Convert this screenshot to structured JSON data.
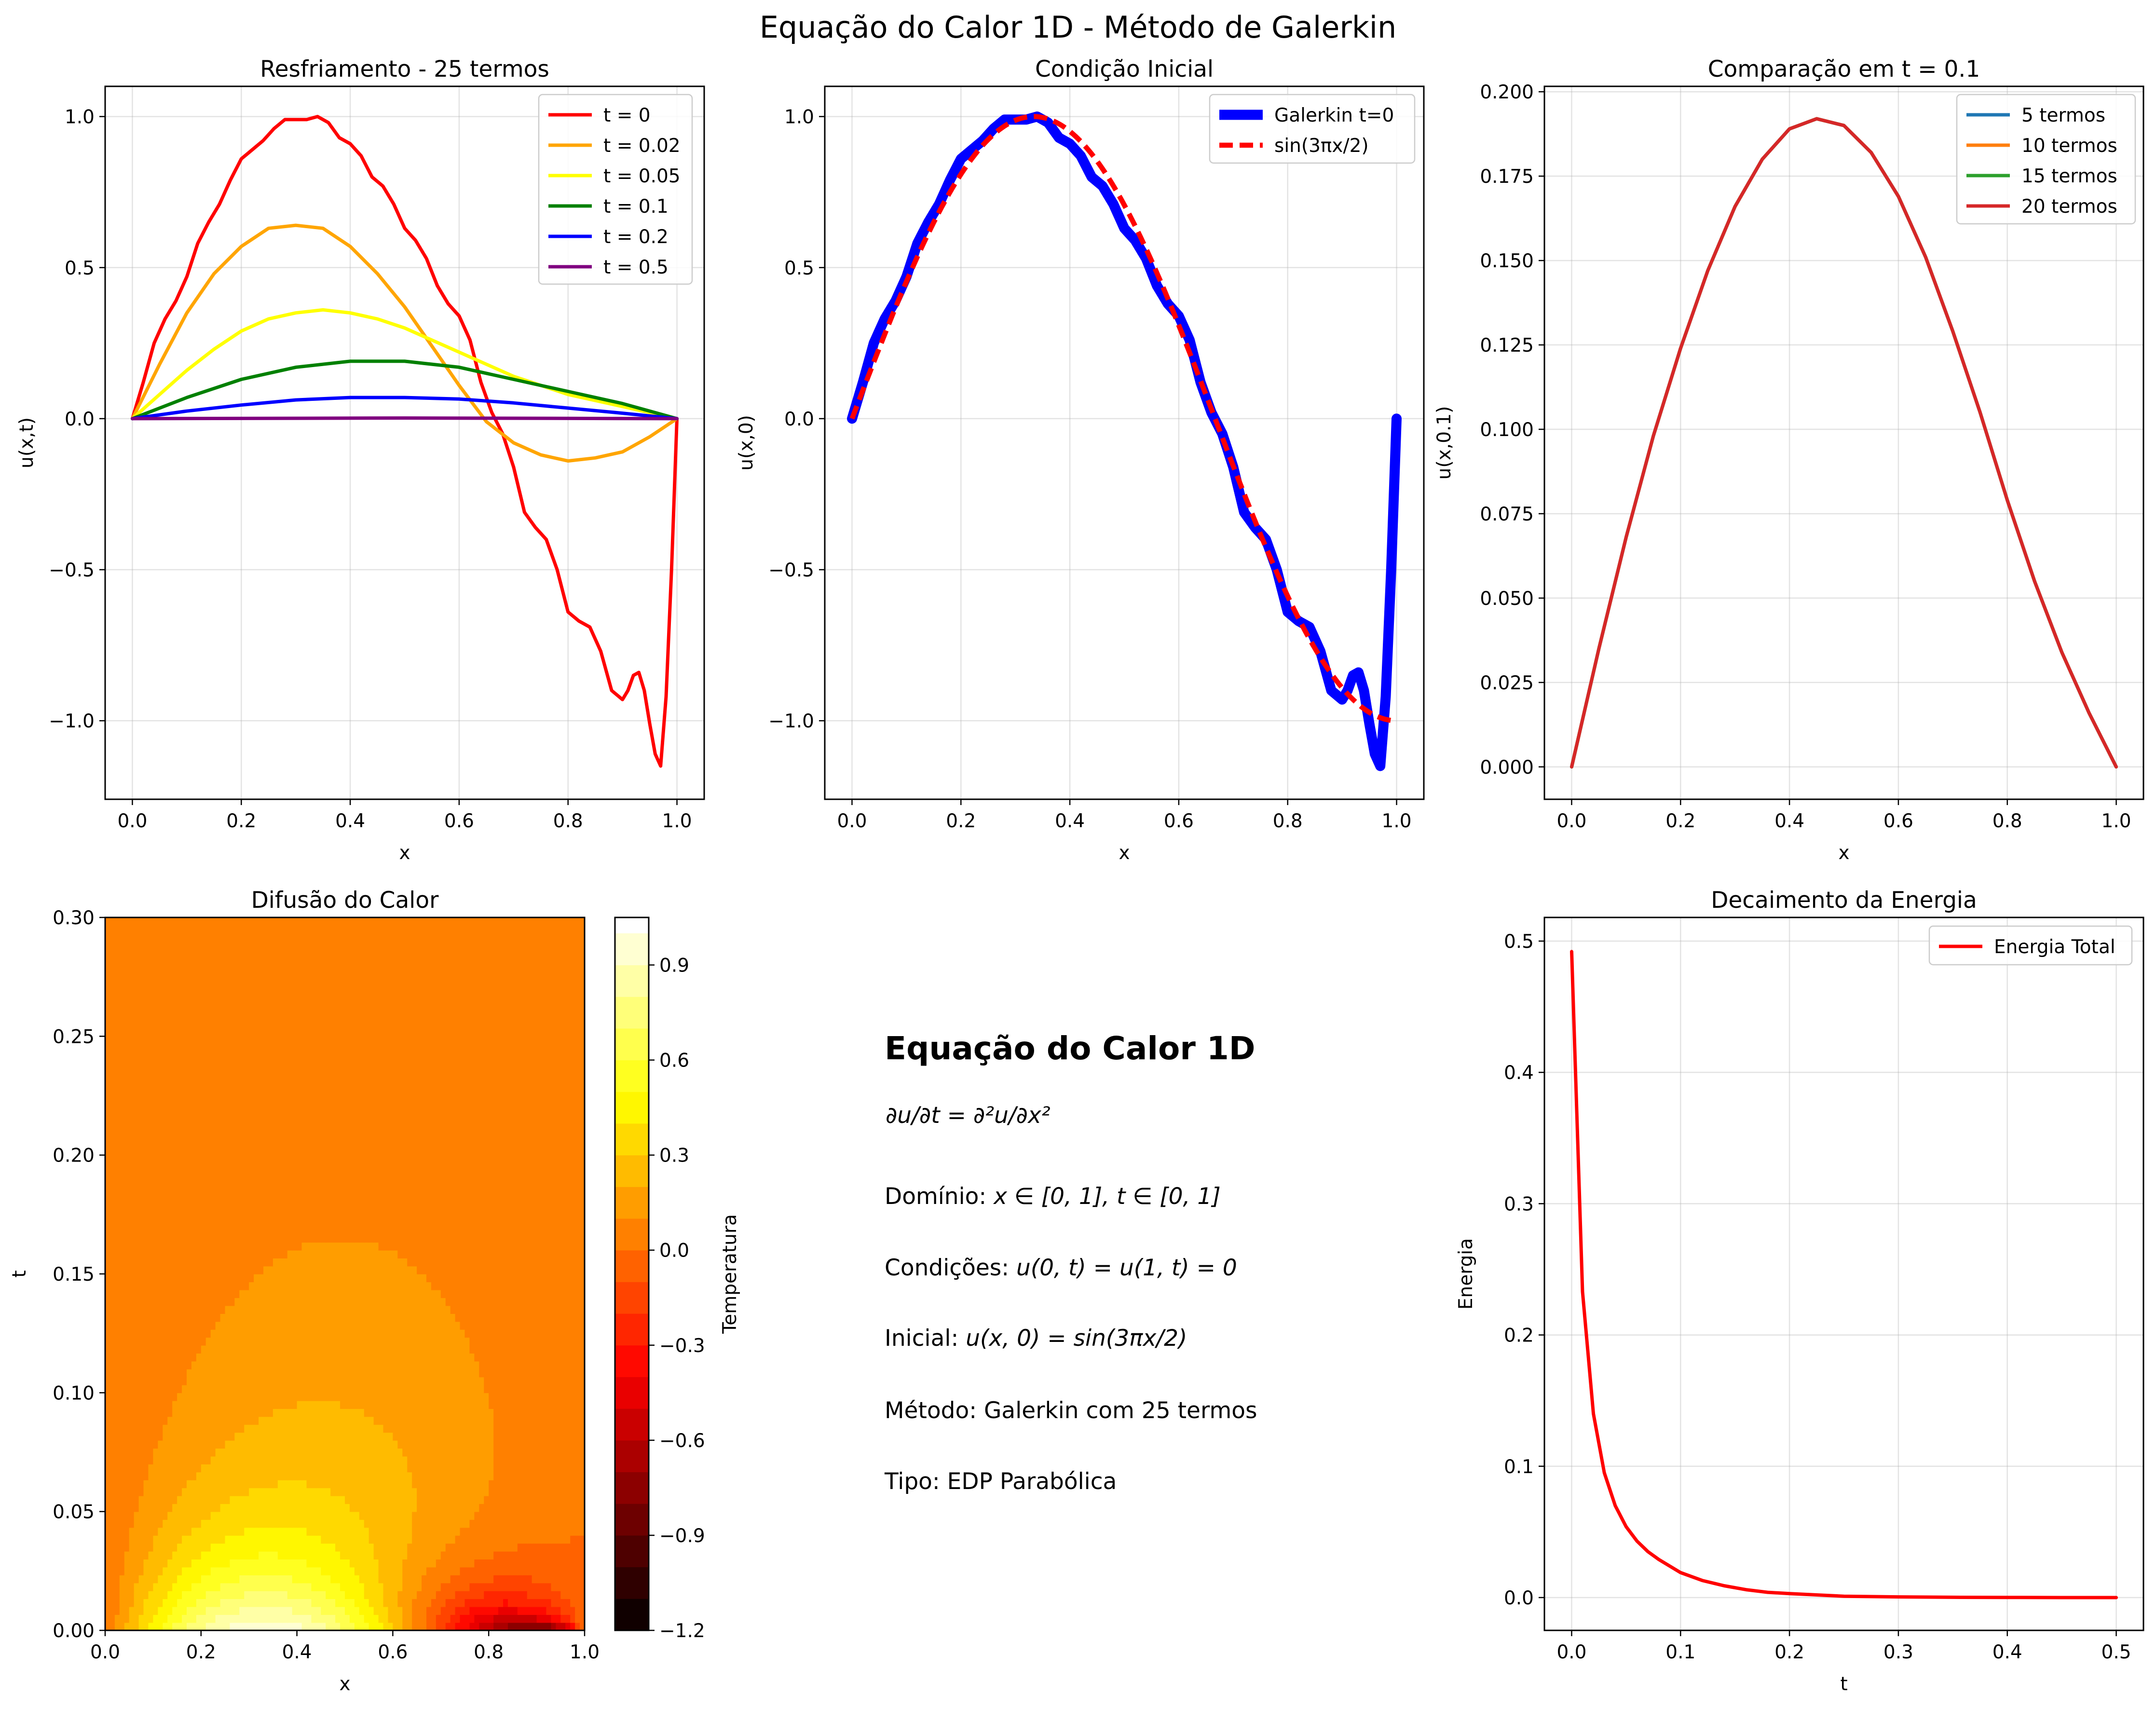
{
  "figure": {
    "suptitle": "Equação do Calor 1D - Método de Galerkin"
  },
  "chart_data": [
    {
      "id": "cooling",
      "type": "line",
      "title": "Resfriamento - 25 termos",
      "xlabel": "x",
      "ylabel": "u(x,t)",
      "xlim": [
        -0.05,
        1.05
      ],
      "ylim": [
        -1.26,
        1.1
      ],
      "xticks": [
        0.0,
        0.2,
        0.4,
        0.6,
        0.8,
        1.0
      ],
      "xtick_labels": [
        "0.0",
        "0.2",
        "0.4",
        "0.6",
        "0.8",
        "1.0"
      ],
      "yticks": [
        -1.0,
        -0.5,
        0.0,
        0.5,
        1.0
      ],
      "ytick_labels": [
        "−1.0",
        "−0.5",
        "0.0",
        "0.5",
        "1.0"
      ],
      "grid": true,
      "legend_position": "upper right",
      "series": [
        {
          "name": "t = 0",
          "color": "#ff0000",
          "x": [
            0,
            0.02,
            0.04,
            0.06,
            0.08,
            0.1,
            0.12,
            0.14,
            0.16,
            0.18,
            0.2,
            0.22,
            0.24,
            0.26,
            0.28,
            0.3,
            0.32,
            0.34,
            0.36,
            0.38,
            0.4,
            0.42,
            0.44,
            0.46,
            0.48,
            0.5,
            0.52,
            0.54,
            0.56,
            0.58,
            0.6,
            0.62,
            0.64,
            0.66,
            0.68,
            0.7,
            0.72,
            0.74,
            0.76,
            0.78,
            0.8,
            0.82,
            0.84,
            0.86,
            0.88,
            0.9,
            0.91,
            0.92,
            0.93,
            0.94,
            0.95,
            0.96,
            0.97,
            0.98,
            0.99,
            1.0
          ],
          "y": [
            0,
            0.12,
            0.25,
            0.33,
            0.39,
            0.47,
            0.58,
            0.65,
            0.71,
            0.79,
            0.86,
            0.89,
            0.92,
            0.96,
            0.99,
            0.99,
            0.99,
            1.0,
            0.98,
            0.93,
            0.91,
            0.87,
            0.8,
            0.77,
            0.71,
            0.63,
            0.59,
            0.53,
            0.44,
            0.38,
            0.34,
            0.26,
            0.12,
            0.02,
            -0.05,
            -0.16,
            -0.31,
            -0.36,
            -0.4,
            -0.5,
            -0.64,
            -0.67,
            -0.69,
            -0.77,
            -0.9,
            -0.93,
            -0.9,
            -0.85,
            -0.84,
            -0.9,
            -1.01,
            -1.11,
            -1.15,
            -0.92,
            -0.5,
            0
          ]
        },
        {
          "name": "t = 0.02",
          "color": "#ffa500",
          "x": [
            0,
            0.05,
            0.1,
            0.15,
            0.2,
            0.25,
            0.3,
            0.35,
            0.4,
            0.45,
            0.5,
            0.55,
            0.6,
            0.65,
            0.7,
            0.75,
            0.8,
            0.85,
            0.9,
            0.95,
            1.0
          ],
          "y": [
            0,
            0.18,
            0.35,
            0.48,
            0.57,
            0.63,
            0.64,
            0.63,
            0.57,
            0.48,
            0.37,
            0.24,
            0.11,
            -0.01,
            -0.08,
            -0.12,
            -0.14,
            -0.13,
            -0.11,
            -0.06,
            0
          ]
        },
        {
          "name": "t = 0.05",
          "color": "#ffff00",
          "x": [
            0,
            0.05,
            0.1,
            0.15,
            0.2,
            0.25,
            0.3,
            0.35,
            0.4,
            0.45,
            0.5,
            0.55,
            0.6,
            0.65,
            0.7,
            0.75,
            0.8,
            0.85,
            0.9,
            0.95,
            1.0
          ],
          "y": [
            0,
            0.08,
            0.16,
            0.23,
            0.29,
            0.33,
            0.35,
            0.36,
            0.35,
            0.33,
            0.3,
            0.26,
            0.22,
            0.18,
            0.14,
            0.11,
            0.08,
            0.06,
            0.04,
            0.02,
            0
          ]
        },
        {
          "name": "t = 0.1",
          "color": "#008000",
          "x": [
            0,
            0.1,
            0.2,
            0.3,
            0.4,
            0.45,
            0.5,
            0.6,
            0.7,
            0.8,
            0.9,
            1.0
          ],
          "y": [
            0,
            0.07,
            0.13,
            0.17,
            0.19,
            0.19,
            0.19,
            0.17,
            0.13,
            0.09,
            0.05,
            0
          ]
        },
        {
          "name": "t = 0.2",
          "color": "#0000ff",
          "x": [
            0,
            0.1,
            0.2,
            0.3,
            0.4,
            0.5,
            0.6,
            0.7,
            0.8,
            0.9,
            1.0
          ],
          "y": [
            0,
            0.025,
            0.045,
            0.062,
            0.07,
            0.07,
            0.065,
            0.052,
            0.035,
            0.018,
            0
          ]
        },
        {
          "name": "t = 0.5",
          "color": "#800080",
          "x": [
            0,
            0.5,
            1.0
          ],
          "y": [
            0,
            0.002,
            0
          ]
        }
      ]
    },
    {
      "id": "initial",
      "type": "line",
      "title": "Condição Inicial",
      "xlabel": "x",
      "ylabel": "u(x,0)",
      "xlim": [
        -0.05,
        1.05
      ],
      "ylim": [
        -1.26,
        1.1
      ],
      "xticks": [
        0.0,
        0.2,
        0.4,
        0.6,
        0.8,
        1.0
      ],
      "xtick_labels": [
        "0.0",
        "0.2",
        "0.4",
        "0.6",
        "0.8",
        "1.0"
      ],
      "yticks": [
        -1.0,
        -0.5,
        0.0,
        0.5,
        1.0
      ],
      "ytick_labels": [
        "−1.0",
        "−0.5",
        "0.0",
        "0.5",
        "1.0"
      ],
      "grid": true,
      "legend_position": "upper right",
      "series": [
        {
          "name": "Galerkin t=0",
          "color": "#0000ff",
          "style": "solid",
          "width": 3,
          "x": [
            0,
            0.02,
            0.04,
            0.06,
            0.08,
            0.1,
            0.12,
            0.14,
            0.16,
            0.18,
            0.2,
            0.22,
            0.24,
            0.26,
            0.28,
            0.3,
            0.32,
            0.34,
            0.36,
            0.38,
            0.4,
            0.42,
            0.44,
            0.46,
            0.48,
            0.5,
            0.52,
            0.54,
            0.56,
            0.58,
            0.6,
            0.62,
            0.64,
            0.66,
            0.68,
            0.7,
            0.72,
            0.74,
            0.76,
            0.78,
            0.8,
            0.82,
            0.84,
            0.86,
            0.88,
            0.9,
            0.91,
            0.92,
            0.93,
            0.94,
            0.95,
            0.96,
            0.97,
            0.98,
            0.99,
            1.0
          ],
          "y": [
            0,
            0.12,
            0.25,
            0.33,
            0.39,
            0.47,
            0.58,
            0.65,
            0.71,
            0.79,
            0.86,
            0.89,
            0.92,
            0.96,
            0.99,
            0.99,
            0.99,
            1.0,
            0.98,
            0.93,
            0.91,
            0.87,
            0.8,
            0.77,
            0.71,
            0.63,
            0.59,
            0.53,
            0.44,
            0.38,
            0.34,
            0.26,
            0.12,
            0.02,
            -0.05,
            -0.16,
            -0.31,
            -0.36,
            -0.4,
            -0.5,
            -0.64,
            -0.67,
            -0.69,
            -0.77,
            -0.9,
            -0.93,
            -0.9,
            -0.85,
            -0.84,
            -0.9,
            -1.01,
            -1.11,
            -1.15,
            -0.92,
            -0.5,
            0
          ]
        },
        {
          "name": "sin(3πx/2)",
          "color": "#ff0000",
          "style": "dashed",
          "width": 1.5,
          "function": "sin(3*pi*x/2)",
          "x_range": [
            0,
            1
          ]
        }
      ]
    },
    {
      "id": "comparison",
      "type": "line",
      "title": "Comparação em t = 0.1",
      "xlabel": "x",
      "ylabel": "u(x,0.1)",
      "xlim": [
        -0.05,
        1.05
      ],
      "ylim": [
        -0.0096,
        0.2016
      ],
      "xticks": [
        0.0,
        0.2,
        0.4,
        0.6,
        0.8,
        1.0
      ],
      "xtick_labels": [
        "0.0",
        "0.2",
        "0.4",
        "0.6",
        "0.8",
        "1.0"
      ],
      "yticks": [
        0.0,
        0.025,
        0.05,
        0.075,
        0.1,
        0.125,
        0.15,
        0.175,
        0.2
      ],
      "ytick_labels": [
        "0.000",
        "0.025",
        "0.050",
        "0.075",
        "0.100",
        "0.125",
        "0.150",
        "0.175",
        "0.200"
      ],
      "grid": true,
      "legend_position": "upper right",
      "series": [
        {
          "name": "5 termos",
          "color": "#1f77b4",
          "x": [
            0,
            0.05,
            0.1,
            0.15,
            0.2,
            0.25,
            0.3,
            0.35,
            0.4,
            0.45,
            0.5,
            0.55,
            0.6,
            0.65,
            0.7,
            0.75,
            0.8,
            0.85,
            0.9,
            0.95,
            1.0
          ],
          "y": [
            0,
            0.035,
            0.068,
            0.098,
            0.124,
            0.147,
            0.166,
            0.18,
            0.189,
            0.192,
            0.19,
            0.182,
            0.169,
            0.151,
            0.129,
            0.105,
            0.079,
            0.055,
            0.034,
            0.016,
            0
          ]
        },
        {
          "name": "10 termos",
          "color": "#ff7f0e",
          "x": [
            0,
            0.05,
            0.1,
            0.15,
            0.2,
            0.25,
            0.3,
            0.35,
            0.4,
            0.45,
            0.5,
            0.55,
            0.6,
            0.65,
            0.7,
            0.75,
            0.8,
            0.85,
            0.9,
            0.95,
            1.0
          ],
          "y": [
            0,
            0.035,
            0.068,
            0.098,
            0.124,
            0.147,
            0.166,
            0.18,
            0.189,
            0.192,
            0.19,
            0.182,
            0.169,
            0.151,
            0.129,
            0.105,
            0.079,
            0.055,
            0.034,
            0.016,
            0
          ]
        },
        {
          "name": "15 termos",
          "color": "#2ca02c",
          "x": [
            0,
            0.05,
            0.1,
            0.15,
            0.2,
            0.25,
            0.3,
            0.35,
            0.4,
            0.45,
            0.5,
            0.55,
            0.6,
            0.65,
            0.7,
            0.75,
            0.8,
            0.85,
            0.9,
            0.95,
            1.0
          ],
          "y": [
            0,
            0.035,
            0.068,
            0.098,
            0.124,
            0.147,
            0.166,
            0.18,
            0.189,
            0.192,
            0.19,
            0.182,
            0.169,
            0.151,
            0.129,
            0.105,
            0.079,
            0.055,
            0.034,
            0.016,
            0
          ]
        },
        {
          "name": "20 termos",
          "color": "#d62728",
          "x": [
            0,
            0.05,
            0.1,
            0.15,
            0.2,
            0.25,
            0.3,
            0.35,
            0.4,
            0.45,
            0.5,
            0.55,
            0.6,
            0.65,
            0.7,
            0.75,
            0.8,
            0.85,
            0.9,
            0.95,
            1.0
          ],
          "y": [
            0,
            0.035,
            0.068,
            0.098,
            0.124,
            0.147,
            0.166,
            0.18,
            0.189,
            0.192,
            0.19,
            0.182,
            0.169,
            0.151,
            0.129,
            0.105,
            0.079,
            0.055,
            0.034,
            0.016,
            0
          ]
        }
      ]
    },
    {
      "id": "diffusion",
      "type": "heatmap",
      "title": "Difusão do Calor",
      "xlabel": "x",
      "ylabel": "t",
      "xlim": [
        0,
        1
      ],
      "ylim": [
        0,
        0.3
      ],
      "xticks": [
        0.0,
        0.2,
        0.4,
        0.6,
        0.8,
        1.0
      ],
      "xtick_labels": [
        "0.0",
        "0.2",
        "0.4",
        "0.6",
        "0.8",
        "1.0"
      ],
      "yticks": [
        0.0,
        0.05,
        0.1,
        0.15,
        0.2,
        0.25,
        0.3
      ],
      "ytick_labels": [
        "0.00",
        "0.05",
        "0.10",
        "0.15",
        "0.20",
        "0.25",
        "0.30"
      ],
      "colormap": "hot",
      "colorbar": {
        "label": "Temperatura",
        "range": [
          -1.2,
          1.05
        ],
        "ticks": [
          -1.2,
          -0.9,
          -0.6,
          -0.3,
          0.0,
          0.3,
          0.6,
          0.9
        ],
        "tick_labels": [
          "−1.2",
          "−0.9",
          "−0.6",
          "−0.3",
          "0.0",
          "0.3",
          "0.6",
          "0.9"
        ]
      },
      "field": "sum_n b_n exp(-(n pi)^2 t) sin(n pi x), 25 termos, u(x,0)=sin(3πx/2)"
    },
    {
      "id": "energy",
      "type": "line",
      "title": "Decaimento da Energia",
      "xlabel": "t",
      "ylabel": "Energia",
      "xlim": [
        -0.025,
        0.525
      ],
      "ylim": [
        -0.025,
        0.518
      ],
      "xticks": [
        0.0,
        0.1,
        0.2,
        0.3,
        0.4,
        0.5
      ],
      "xtick_labels": [
        "0.0",
        "0.1",
        "0.2",
        "0.3",
        "0.4",
        "0.5"
      ],
      "yticks": [
        0.0,
        0.1,
        0.2,
        0.3,
        0.4,
        0.5
      ],
      "ytick_labels": [
        "0.0",
        "0.1",
        "0.2",
        "0.3",
        "0.4",
        "0.5"
      ],
      "grid": true,
      "legend_position": "upper right",
      "series": [
        {
          "name": "Energia Total",
          "color": "#ff0000",
          "x": [
            0,
            0.01,
            0.02,
            0.03,
            0.04,
            0.05,
            0.06,
            0.07,
            0.08,
            0.09,
            0.1,
            0.12,
            0.14,
            0.16,
            0.18,
            0.2,
            0.25,
            0.3,
            0.35,
            0.4,
            0.45,
            0.5
          ],
          "y": [
            0.492,
            0.233,
            0.14,
            0.095,
            0.07,
            0.054,
            0.043,
            0.035,
            0.029,
            0.024,
            0.019,
            0.013,
            0.009,
            0.006,
            0.004,
            0.003,
            0.001,
            0.0005,
            0.0002,
            0.0001,
            0.0,
            0.0
          ]
        }
      ]
    }
  ],
  "info_panel": {
    "title": "Equação do Calor 1D",
    "pde": "∂u/∂t = ∂²u/∂x²",
    "domain_label": "Domínio: ",
    "domain_math": "x ∈ [0, 1], t ∈ [0, 1]",
    "conditions_label": "Condições: ",
    "conditions_math": "u(0, t) = u(1, t) = 0",
    "initial_label": "Inicial: ",
    "initial_math": "u(x, 0) = sin(3πx/2)",
    "method": "Método: Galerkin com 25 termos",
    "type": "Tipo: EDP Parabólica"
  }
}
